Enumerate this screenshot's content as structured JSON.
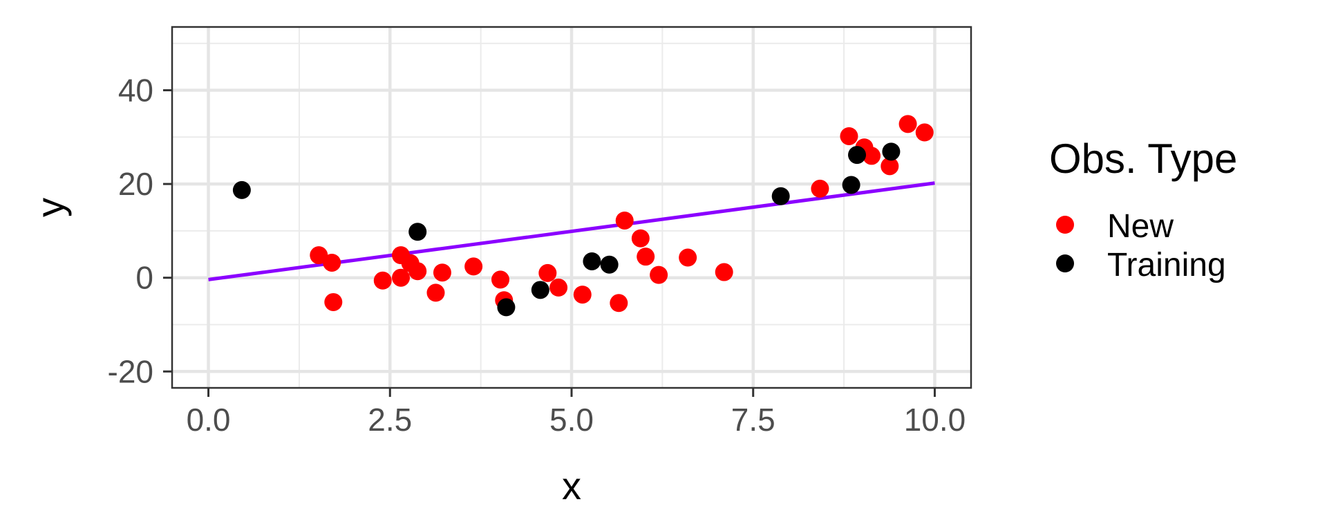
{
  "chart_data": {
    "type": "scatter",
    "title": "",
    "xlabel": "x",
    "ylabel": "y",
    "xlim": [
      -0.5,
      10.5
    ],
    "ylim": [
      -23.5,
      53.5
    ],
    "x_ticks": [
      0.0,
      2.5,
      5.0,
      7.5,
      10.0
    ],
    "x_tick_labels": [
      "0.0",
      "2.5",
      "5.0",
      "7.5",
      "10.0"
    ],
    "y_ticks": [
      -20,
      0,
      20,
      40
    ],
    "y_tick_labels": [
      "-20",
      "0",
      "20",
      "40"
    ],
    "grid": true,
    "legend": {
      "title": "Obs. Type",
      "position": "right",
      "entries": [
        {
          "label": "New",
          "color": "#ff0000"
        },
        {
          "label": "Training",
          "color": "#000000"
        }
      ]
    },
    "series": [
      {
        "name": "New",
        "color": "#ff0000",
        "points": [
          {
            "x": 1.52,
            "y": 4.8
          },
          {
            "x": 1.7,
            "y": 3.2
          },
          {
            "x": 1.72,
            "y": -5.2
          },
          {
            "x": 2.4,
            "y": -0.6
          },
          {
            "x": 2.65,
            "y": 4.8
          },
          {
            "x": 2.65,
            "y": 0.0
          },
          {
            "x": 2.78,
            "y": 3.1
          },
          {
            "x": 2.88,
            "y": 1.4
          },
          {
            "x": 3.13,
            "y": -3.2
          },
          {
            "x": 3.22,
            "y": 1.1
          },
          {
            "x": 3.65,
            "y": 2.4
          },
          {
            "x": 4.02,
            "y": -0.4
          },
          {
            "x": 4.07,
            "y": -4.8
          },
          {
            "x": 4.67,
            "y": 1.0
          },
          {
            "x": 4.82,
            "y": -2.1
          },
          {
            "x": 5.15,
            "y": -3.6
          },
          {
            "x": 5.65,
            "y": -5.4
          },
          {
            "x": 5.73,
            "y": 12.2
          },
          {
            "x": 5.95,
            "y": 8.4
          },
          {
            "x": 6.02,
            "y": 4.5
          },
          {
            "x": 6.2,
            "y": 0.6
          },
          {
            "x": 6.6,
            "y": 4.3
          },
          {
            "x": 7.1,
            "y": 1.2
          },
          {
            "x": 8.42,
            "y": 19.0
          },
          {
            "x": 8.82,
            "y": 30.2
          },
          {
            "x": 9.03,
            "y": 27.8
          },
          {
            "x": 9.13,
            "y": 26.0
          },
          {
            "x": 9.38,
            "y": 23.8
          },
          {
            "x": 9.63,
            "y": 32.8
          },
          {
            "x": 9.86,
            "y": 31.0
          }
        ]
      },
      {
        "name": "Training",
        "color": "#000000",
        "points": [
          {
            "x": 0.46,
            "y": 18.7
          },
          {
            "x": 2.88,
            "y": 9.8
          },
          {
            "x": 4.1,
            "y": -6.3
          },
          {
            "x": 4.57,
            "y": -2.6
          },
          {
            "x": 5.28,
            "y": 3.5
          },
          {
            "x": 5.52,
            "y": 2.8
          },
          {
            "x": 7.88,
            "y": 17.4
          },
          {
            "x": 8.85,
            "y": 19.8
          },
          {
            "x": 8.93,
            "y": 26.2
          },
          {
            "x": 9.4,
            "y": 26.9
          }
        ]
      }
    ],
    "fit_line": {
      "color": "#8b00ff",
      "x": [
        0.0,
        10.0
      ],
      "y": [
        -0.4,
        20.2
      ]
    }
  }
}
